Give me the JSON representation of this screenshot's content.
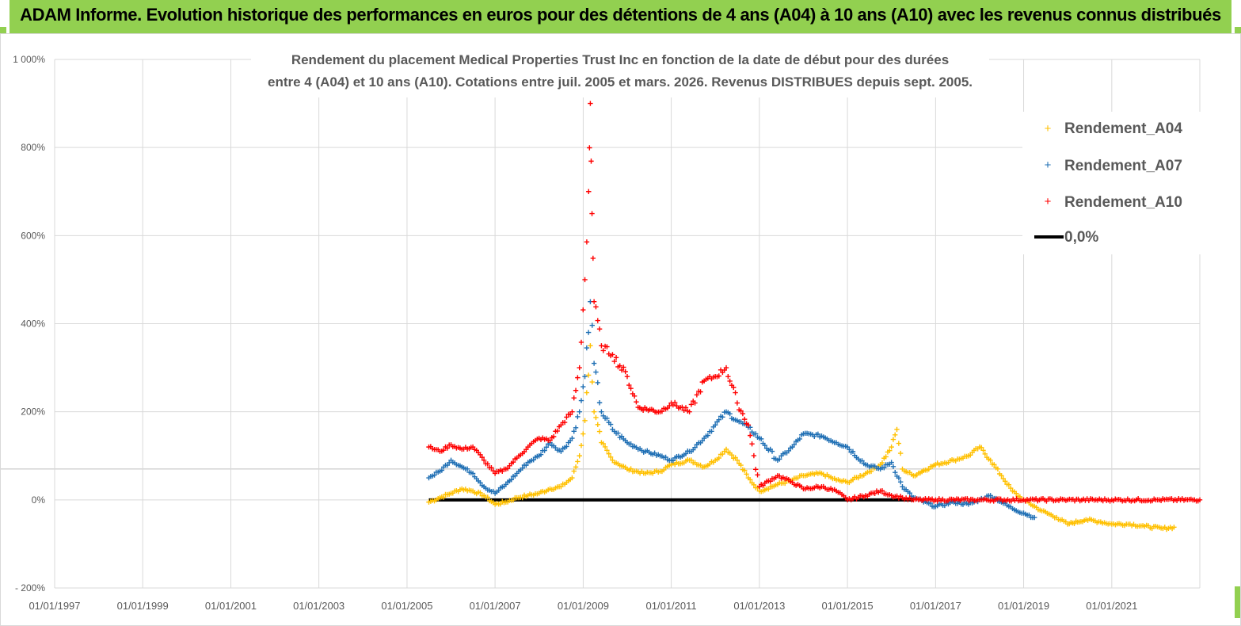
{
  "banner": {
    "title": "ADAM Informe. Evolution historique des performances en euros pour des détentions de 4 ans (A04) à 10 ans (A10) avec les revenus connus distribués"
  },
  "chart_data": {
    "type": "scatter",
    "title_line1": "Rendement du placement Medical Properties Trust Inc en fonction de la date de début pour des durées",
    "title_line2": "entre 4 (A04) et 10 ans (A10).  Cotations entre juil. 2005 et mars. 2026. Revenus DISTRIBUES depuis sept. 2005.",
    "y_ticks": [
      "1 000%",
      "800%",
      "600%",
      "400%",
      "200%",
      "0%",
      "- 200%"
    ],
    "x_ticks": [
      "01/01/1997",
      "01/01/1999",
      "01/01/2001",
      "01/01/2003",
      "01/01/2005",
      "01/01/2007",
      "01/01/2009",
      "01/01/2011",
      "01/01/2013",
      "01/01/2015",
      "01/01/2017",
      "01/01/2019",
      "01/01/2021"
    ],
    "xlim": [
      "1997-01-01",
      "2023-01-01"
    ],
    "ylim": [
      -200,
      1000
    ],
    "grid": true,
    "legend_position": "top-right",
    "series": [
      {
        "name": "Rendement_A04",
        "color": "#ffc000",
        "marker": "+",
        "points": [
          [
            "2005-07-01",
            -5
          ],
          [
            "2005-10-01",
            5
          ],
          [
            "2006-01-01",
            15
          ],
          [
            "2006-04-01",
            25
          ],
          [
            "2006-07-01",
            20
          ],
          [
            "2006-10-01",
            10
          ],
          [
            "2007-01-01",
            -10
          ],
          [
            "2007-04-01",
            -5
          ],
          [
            "2007-07-01",
            5
          ],
          [
            "2007-10-01",
            10
          ],
          [
            "2008-01-01",
            15
          ],
          [
            "2008-04-01",
            25
          ],
          [
            "2008-07-01",
            30
          ],
          [
            "2008-10-01",
            50
          ],
          [
            "2008-12-01",
            100
          ],
          [
            "2009-01-15",
            180
          ],
          [
            "2009-03-01",
            350
          ],
          [
            "2009-04-01",
            200
          ],
          [
            "2009-06-01",
            130
          ],
          [
            "2009-09-01",
            90
          ],
          [
            "2010-01-01",
            70
          ],
          [
            "2010-06-01",
            60
          ],
          [
            "2010-10-01",
            65
          ],
          [
            "2011-01-01",
            80
          ],
          [
            "2011-06-01",
            90
          ],
          [
            "2011-10-01",
            75
          ],
          [
            "2012-01-01",
            90
          ],
          [
            "2012-04-01",
            115
          ],
          [
            "2012-07-01",
            90
          ],
          [
            "2012-10-01",
            50
          ],
          [
            "2013-01-01",
            20
          ],
          [
            "2013-06-01",
            35
          ],
          [
            "2013-10-01",
            45
          ],
          [
            "2014-01-01",
            55
          ],
          [
            "2014-06-01",
            60
          ],
          [
            "2014-10-01",
            45
          ],
          [
            "2015-01-01",
            40
          ],
          [
            "2015-06-01",
            60
          ],
          [
            "2015-10-01",
            80
          ],
          [
            "2016-01-01",
            120
          ],
          [
            "2016-02-15",
            160
          ],
          [
            "2016-04-01",
            70
          ],
          [
            "2016-07-01",
            55
          ],
          [
            "2017-01-01",
            80
          ],
          [
            "2017-06-01",
            90
          ],
          [
            "2017-10-01",
            100
          ],
          [
            "2018-01-01",
            120
          ],
          [
            "2018-04-01",
            90
          ],
          [
            "2018-07-01",
            55
          ],
          [
            "2018-10-01",
            20
          ],
          [
            "2019-01-01",
            0
          ],
          [
            "2019-06-01",
            -25
          ],
          [
            "2019-10-01",
            -40
          ],
          [
            "2020-01-01",
            -55
          ],
          [
            "2020-06-01",
            -45
          ],
          [
            "2020-10-01",
            -50
          ],
          [
            "2021-01-01",
            -55
          ],
          [
            "2021-06-01",
            -55
          ],
          [
            "2021-10-01",
            -60
          ],
          [
            "2022-03-01",
            -65
          ],
          [
            "2022-06-01",
            -62
          ]
        ]
      },
      {
        "name": "Rendement_A07",
        "color": "#1f6fb4",
        "marker": "+",
        "points": [
          [
            "2005-07-01",
            50
          ],
          [
            "2005-10-01",
            65
          ],
          [
            "2006-01-01",
            90
          ],
          [
            "2006-04-01",
            75
          ],
          [
            "2006-07-01",
            60
          ],
          [
            "2006-10-01",
            30
          ],
          [
            "2007-01-01",
            15
          ],
          [
            "2007-04-01",
            35
          ],
          [
            "2007-07-01",
            60
          ],
          [
            "2007-10-01",
            85
          ],
          [
            "2008-01-01",
            100
          ],
          [
            "2008-04-01",
            130
          ],
          [
            "2008-07-01",
            110
          ],
          [
            "2008-10-01",
            140
          ],
          [
            "2008-12-01",
            200
          ],
          [
            "2009-01-15",
            280
          ],
          [
            "2009-03-01",
            450
          ],
          [
            "2009-04-01",
            310
          ],
          [
            "2009-06-01",
            200
          ],
          [
            "2009-09-01",
            160
          ],
          [
            "2010-01-01",
            130
          ],
          [
            "2010-06-01",
            110
          ],
          [
            "2010-10-01",
            100
          ],
          [
            "2011-01-01",
            90
          ],
          [
            "2011-06-01",
            110
          ],
          [
            "2011-10-01",
            140
          ],
          [
            "2012-01-01",
            170
          ],
          [
            "2012-04-01",
            200
          ],
          [
            "2012-07-01",
            180
          ],
          [
            "2012-10-01",
            165
          ],
          [
            "2013-01-01",
            140
          ],
          [
            "2013-06-01",
            90
          ],
          [
            "2013-10-01",
            120
          ],
          [
            "2014-01-01",
            150
          ],
          [
            "2014-06-01",
            145
          ],
          [
            "2014-10-01",
            130
          ],
          [
            "2015-01-01",
            120
          ],
          [
            "2015-06-01",
            80
          ],
          [
            "2015-10-01",
            70
          ],
          [
            "2016-01-01",
            85
          ],
          [
            "2016-04-01",
            30
          ],
          [
            "2016-07-01",
            5
          ],
          [
            "2017-01-01",
            -15
          ],
          [
            "2017-06-01",
            -5
          ],
          [
            "2017-10-01",
            -10
          ],
          [
            "2018-01-01",
            0
          ],
          [
            "2018-04-01",
            10
          ],
          [
            "2018-07-01",
            -5
          ],
          [
            "2018-10-01",
            -20
          ],
          [
            "2019-01-01",
            -30
          ],
          [
            "2019-04-01",
            -40
          ]
        ]
      },
      {
        "name": "Rendement_A10",
        "color": "#ff0000",
        "marker": "+",
        "points": [
          [
            "2005-07-01",
            120
          ],
          [
            "2005-10-01",
            110
          ],
          [
            "2006-01-01",
            125
          ],
          [
            "2006-04-01",
            115
          ],
          [
            "2006-07-01",
            120
          ],
          [
            "2006-10-01",
            90
          ],
          [
            "2007-01-01",
            60
          ],
          [
            "2007-04-01",
            70
          ],
          [
            "2007-07-01",
            95
          ],
          [
            "2007-10-01",
            120
          ],
          [
            "2008-01-01",
            140
          ],
          [
            "2008-04-01",
            135
          ],
          [
            "2008-07-01",
            170
          ],
          [
            "2008-10-01",
            200
          ],
          [
            "2008-12-01",
            300
          ],
          [
            "2009-01-15",
            500
          ],
          [
            "2009-02-15",
            700
          ],
          [
            "2009-03-01",
            900
          ],
          [
            "2009-03-15",
            650
          ],
          [
            "2009-04-01",
            450
          ],
          [
            "2009-06-01",
            350
          ],
          [
            "2009-09-01",
            330
          ],
          [
            "2010-01-01",
            280
          ],
          [
            "2010-04-01",
            210
          ],
          [
            "2010-10-01",
            200
          ],
          [
            "2011-01-01",
            220
          ],
          [
            "2011-06-01",
            200
          ],
          [
            "2011-10-01",
            270
          ],
          [
            "2012-01-01",
            280
          ],
          [
            "2012-04-01",
            300
          ],
          [
            "2012-07-01",
            220
          ],
          [
            "2012-10-01",
            170
          ],
          [
            "2013-01-01",
            30
          ],
          [
            "2013-06-01",
            55
          ],
          [
            "2013-10-01",
            40
          ],
          [
            "2014-01-01",
            25
          ],
          [
            "2014-06-01",
            30
          ],
          [
            "2014-10-01",
            20
          ],
          [
            "2015-01-01",
            0
          ],
          [
            "2015-06-01",
            10
          ],
          [
            "2015-10-01",
            20
          ],
          [
            "2016-01-01",
            10
          ],
          [
            "2016-04-01",
            5
          ],
          [
            "2016-07-01",
            0
          ],
          [
            "2017-01-01",
            0
          ],
          [
            "2018-01-01",
            0
          ],
          [
            "2019-01-01",
            0
          ],
          [
            "2020-01-01",
            0
          ],
          [
            "2021-01-01",
            0
          ],
          [
            "2022-01-01",
            0
          ],
          [
            "2023-01-01",
            0
          ]
        ]
      },
      {
        "name": "0,0%",
        "color": "#000000",
        "marker": "line",
        "points": [
          [
            "2005-07-01",
            0
          ],
          [
            "2016-07-01",
            0
          ]
        ]
      }
    ]
  }
}
